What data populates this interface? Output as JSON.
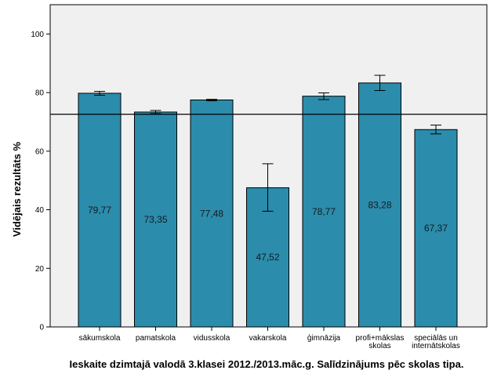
{
  "chart_data": {
    "type": "bar",
    "categories": [
      "sākumskola",
      "pamatskola",
      "vidusskola",
      "vakarskola",
      "ģimnāzija",
      "profi+mākslas skolas",
      "speciālās un internātskolas"
    ],
    "category_lines": [
      [
        "sākumskola"
      ],
      [
        "pamatskola"
      ],
      [
        "vidusskola"
      ],
      [
        "vakarskola"
      ],
      [
        "ģimnāzija"
      ],
      [
        "profi+mākslas",
        "skolas"
      ],
      [
        "speciālās un",
        "internātskolas"
      ]
    ],
    "values": [
      79.77,
      73.35,
      77.48,
      47.52,
      78.77,
      83.28,
      67.37
    ],
    "value_labels": [
      "79,77",
      "73,35",
      "77,48",
      "47,52",
      "78,77",
      "83,28",
      "67,37"
    ],
    "error_low": [
      79.1,
      72.8,
      77.2,
      39.5,
      77.6,
      80.7,
      65.9
    ],
    "error_high": [
      80.4,
      73.9,
      77.7,
      55.7,
      79.9,
      85.9,
      68.9
    ],
    "reference_line": 72.6,
    "ylabel": "Vidējais rezultāts %",
    "xlabel": "Ieskaite dzimtajā valodā 3.klasei 2012./2013.māc.g. Salīdzinājums pēc skolas tipa.",
    "ylim": [
      0,
      110
    ],
    "yticks": [
      0,
      20,
      40,
      60,
      80,
      100
    ],
    "grid": false,
    "colors": {
      "bar": "#2b8cac",
      "plot_bg": "#f0f0f0",
      "reference_line": "#000000"
    }
  }
}
